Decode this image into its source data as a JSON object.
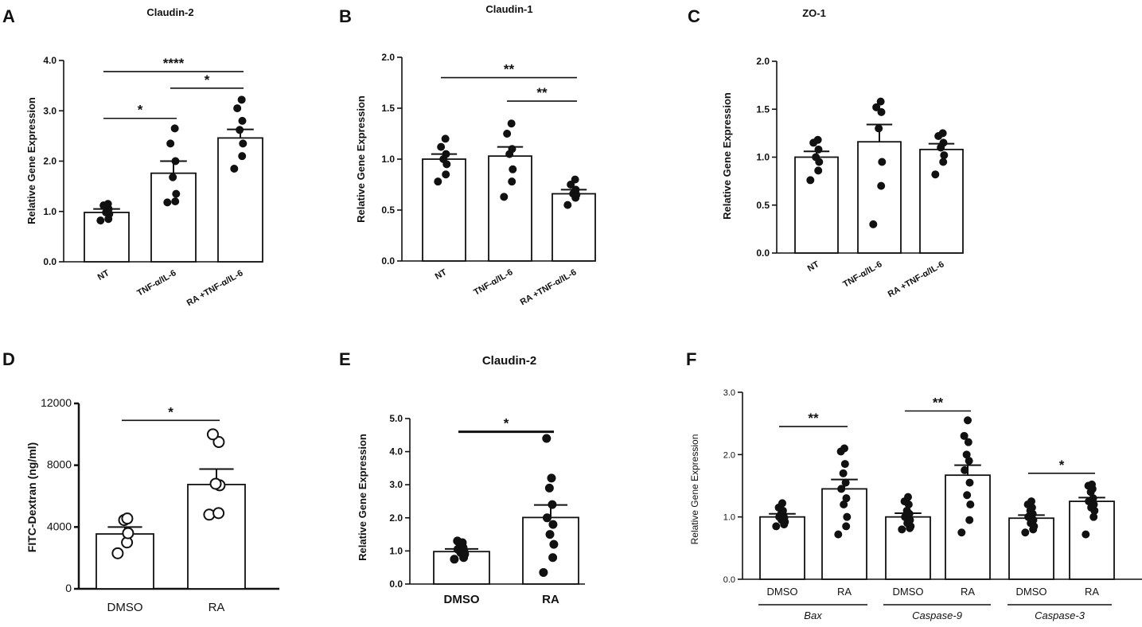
{
  "figure_title": "Six-panel figure: tight junction and apoptosis gene expression and FITC-Dextran permeability",
  "colors": {
    "ink": "#111111",
    "bar_fill": "#ffffff",
    "dot_fill": "#111111",
    "open_dot_fill": "#ffffff"
  },
  "chart_data": [
    {
      "id": "A",
      "panel_label": "A",
      "type": "bar",
      "title": "Claudin-2",
      "xlabel": "",
      "ylabel": "Relative Gene Expression",
      "ylim": [
        0,
        4.0
      ],
      "yticks": [
        0,
        1,
        2,
        3,
        4
      ],
      "ytick_labels": [
        "0.0",
        "1.0",
        "2.0",
        "3.0",
        "4.0"
      ],
      "categories": [
        "NT",
        "TNF-α/IL-6",
        "RA +TNF-α/IL-6"
      ],
      "values": [
        0.98,
        1.76,
        2.46
      ],
      "errors": [
        0.07,
        0.24,
        0.17
      ],
      "points": [
        [
          0.82,
          0.85,
          0.95,
          0.98,
          1.05,
          1.12,
          1.15
        ],
        [
          1.18,
          1.2,
          1.35,
          1.68,
          2.0,
          2.35,
          2.65
        ],
        [
          1.85,
          2.1,
          2.35,
          2.62,
          2.8,
          3.05,
          3.22
        ]
      ],
      "significance": [
        {
          "from": 0,
          "to": 1,
          "y": 2.85,
          "label": "*"
        },
        {
          "from": 1,
          "to": 2,
          "y": 3.45,
          "label": "*"
        },
        {
          "from": 0,
          "to": 2,
          "y": 3.78,
          "label": "****"
        }
      ]
    },
    {
      "id": "B",
      "panel_label": "B",
      "type": "bar",
      "title": "Claudin-1",
      "xlabel": "",
      "ylabel": "Relative Gene Expression",
      "ylim": [
        0,
        2.0
      ],
      "yticks": [
        0,
        0.5,
        1,
        1.5,
        2
      ],
      "ytick_labels": [
        "0.0",
        "0.5",
        "1.0",
        "1.5",
        "2.0"
      ],
      "categories": [
        "NT",
        "TNF-α/IL-6",
        "RA +TNF-α/IL-6"
      ],
      "values": [
        1.0,
        1.03,
        0.66
      ],
      "errors": [
        0.05,
        0.09,
        0.04
      ],
      "points": [
        [
          0.78,
          0.85,
          0.95,
          1.0,
          1.05,
          1.12,
          1.2
        ],
        [
          0.63,
          0.78,
          0.9,
          1.05,
          1.1,
          1.25,
          1.35
        ],
        [
          0.55,
          0.62,
          0.65,
          0.66,
          0.7,
          0.75,
          0.8
        ]
      ],
      "significance": [
        {
          "from": 1,
          "to": 2,
          "y": 1.57,
          "label": "**"
        },
        {
          "from": 0,
          "to": 2,
          "y": 1.8,
          "label": "**"
        }
      ]
    },
    {
      "id": "C",
      "panel_label": "C",
      "type": "bar",
      "title": "ZO-1",
      "xlabel": "",
      "ylabel": "Relative Gene Expression",
      "ylim": [
        0,
        2.0
      ],
      "yticks": [
        0,
        0.5,
        1,
        1.5,
        2
      ],
      "ytick_labels": [
        "0.0",
        "0.5",
        "1.0",
        "1.5",
        "2.0"
      ],
      "categories": [
        "NT",
        "TNF-α/IL-6",
        "RA +TNF-α/IL-6"
      ],
      "values": [
        1.0,
        1.16,
        1.08
      ],
      "errors": [
        0.06,
        0.18,
        0.06
      ],
      "points": [
        [
          0.76,
          0.86,
          0.95,
          1.0,
          1.08,
          1.15,
          1.18
        ],
        [
          0.3,
          0.7,
          0.95,
          1.3,
          1.47,
          1.52,
          1.58
        ],
        [
          0.82,
          0.95,
          1.02,
          1.1,
          1.15,
          1.22,
          1.25
        ]
      ],
      "significance": []
    },
    {
      "id": "D",
      "panel_label": "D",
      "type": "bar",
      "title": "",
      "xlabel": "",
      "ylabel": "FITC-Dextran (ng/ml)",
      "ylim": [
        0,
        12000
      ],
      "yticks": [
        0,
        4000,
        8000,
        12000
      ],
      "ytick_labels": [
        "0",
        "4000",
        "8000",
        "12000"
      ],
      "categories": [
        "DMSO",
        "RA"
      ],
      "values": [
        3550,
        6750
      ],
      "errors": [
        450,
        1000
      ],
      "open_markers": true,
      "points": [
        [
          2300,
          3000,
          3600,
          4450,
          4550
        ],
        [
          4800,
          4900,
          6700,
          6800,
          9500,
          10000
        ]
      ],
      "significance": [
        {
          "from": 0,
          "to": 1,
          "y": 10900,
          "label": "*"
        }
      ]
    },
    {
      "id": "E",
      "panel_label": "E",
      "type": "bar",
      "title": "Claudin-2",
      "xlabel": "",
      "ylabel": "Relative Gene Expression",
      "ylim": [
        0,
        5.0
      ],
      "yticks": [
        0,
        1,
        2,
        3,
        4,
        5
      ],
      "ytick_labels": [
        "0.0",
        "1.0",
        "2.0",
        "3.0",
        "4.0",
        "5.0"
      ],
      "categories": [
        "DMSO",
        "RA"
      ],
      "values": [
        0.98,
        2.01
      ],
      "errors": [
        0.08,
        0.38
      ],
      "points": [
        [
          0.75,
          0.8,
          0.9,
          0.95,
          1.0,
          1.05,
          1.1,
          1.2,
          1.25,
          1.3
        ],
        [
          0.35,
          0.8,
          1.2,
          1.5,
          1.8,
          2.0,
          2.4,
          2.9,
          3.2,
          4.4
        ]
      ],
      "significance": [
        {
          "from": 0,
          "to": 1,
          "y": 4.6,
          "label": "*"
        }
      ]
    },
    {
      "id": "F",
      "panel_label": "F",
      "type": "bar",
      "title": "",
      "xlabel": "",
      "ylabel": "Relative Gene Expression",
      "ylim": [
        0,
        3.0
      ],
      "yticks": [
        0,
        1,
        2,
        3
      ],
      "ytick_labels": [
        "0.0",
        "1.0",
        "2.0",
        "3.0"
      ],
      "categories": [
        "DMSO",
        "RA",
        "DMSO",
        "RA",
        "DMSO",
        "RA"
      ],
      "group_labels": [
        "Bax",
        "Caspase-9",
        "Caspase-3"
      ],
      "values": [
        1.0,
        1.45,
        1.0,
        1.67,
        0.98,
        1.25
      ],
      "errors": [
        0.05,
        0.15,
        0.06,
        0.16,
        0.05,
        0.06
      ],
      "points": [
        [
          0.85,
          0.88,
          0.92,
          0.95,
          0.98,
          1.0,
          1.02,
          1.05,
          1.1,
          1.15,
          1.22
        ],
        [
          0.72,
          0.85,
          1.0,
          1.2,
          1.3,
          1.45,
          1.55,
          1.7,
          1.85,
          2.05,
          2.1
        ],
        [
          0.8,
          0.82,
          0.85,
          0.9,
          0.95,
          1.0,
          1.05,
          1.1,
          1.2,
          1.25,
          1.32
        ],
        [
          0.75,
          0.95,
          1.2,
          1.35,
          1.55,
          1.75,
          1.9,
          2.0,
          2.2,
          2.3,
          2.55
        ],
        [
          0.75,
          0.8,
          0.85,
          0.9,
          0.95,
          1.0,
          1.05,
          1.1,
          1.15,
          1.2,
          1.25
        ],
        [
          0.72,
          1.0,
          1.1,
          1.15,
          1.2,
          1.25,
          1.3,
          1.4,
          1.45,
          1.5,
          1.52
        ]
      ],
      "significance": [
        {
          "from": 0,
          "to": 1,
          "y": 2.45,
          "label": "**"
        },
        {
          "from": 2,
          "to": 3,
          "y": 2.7,
          "label": "**"
        },
        {
          "from": 4,
          "to": 5,
          "y": 1.7,
          "label": "*"
        }
      ]
    }
  ]
}
